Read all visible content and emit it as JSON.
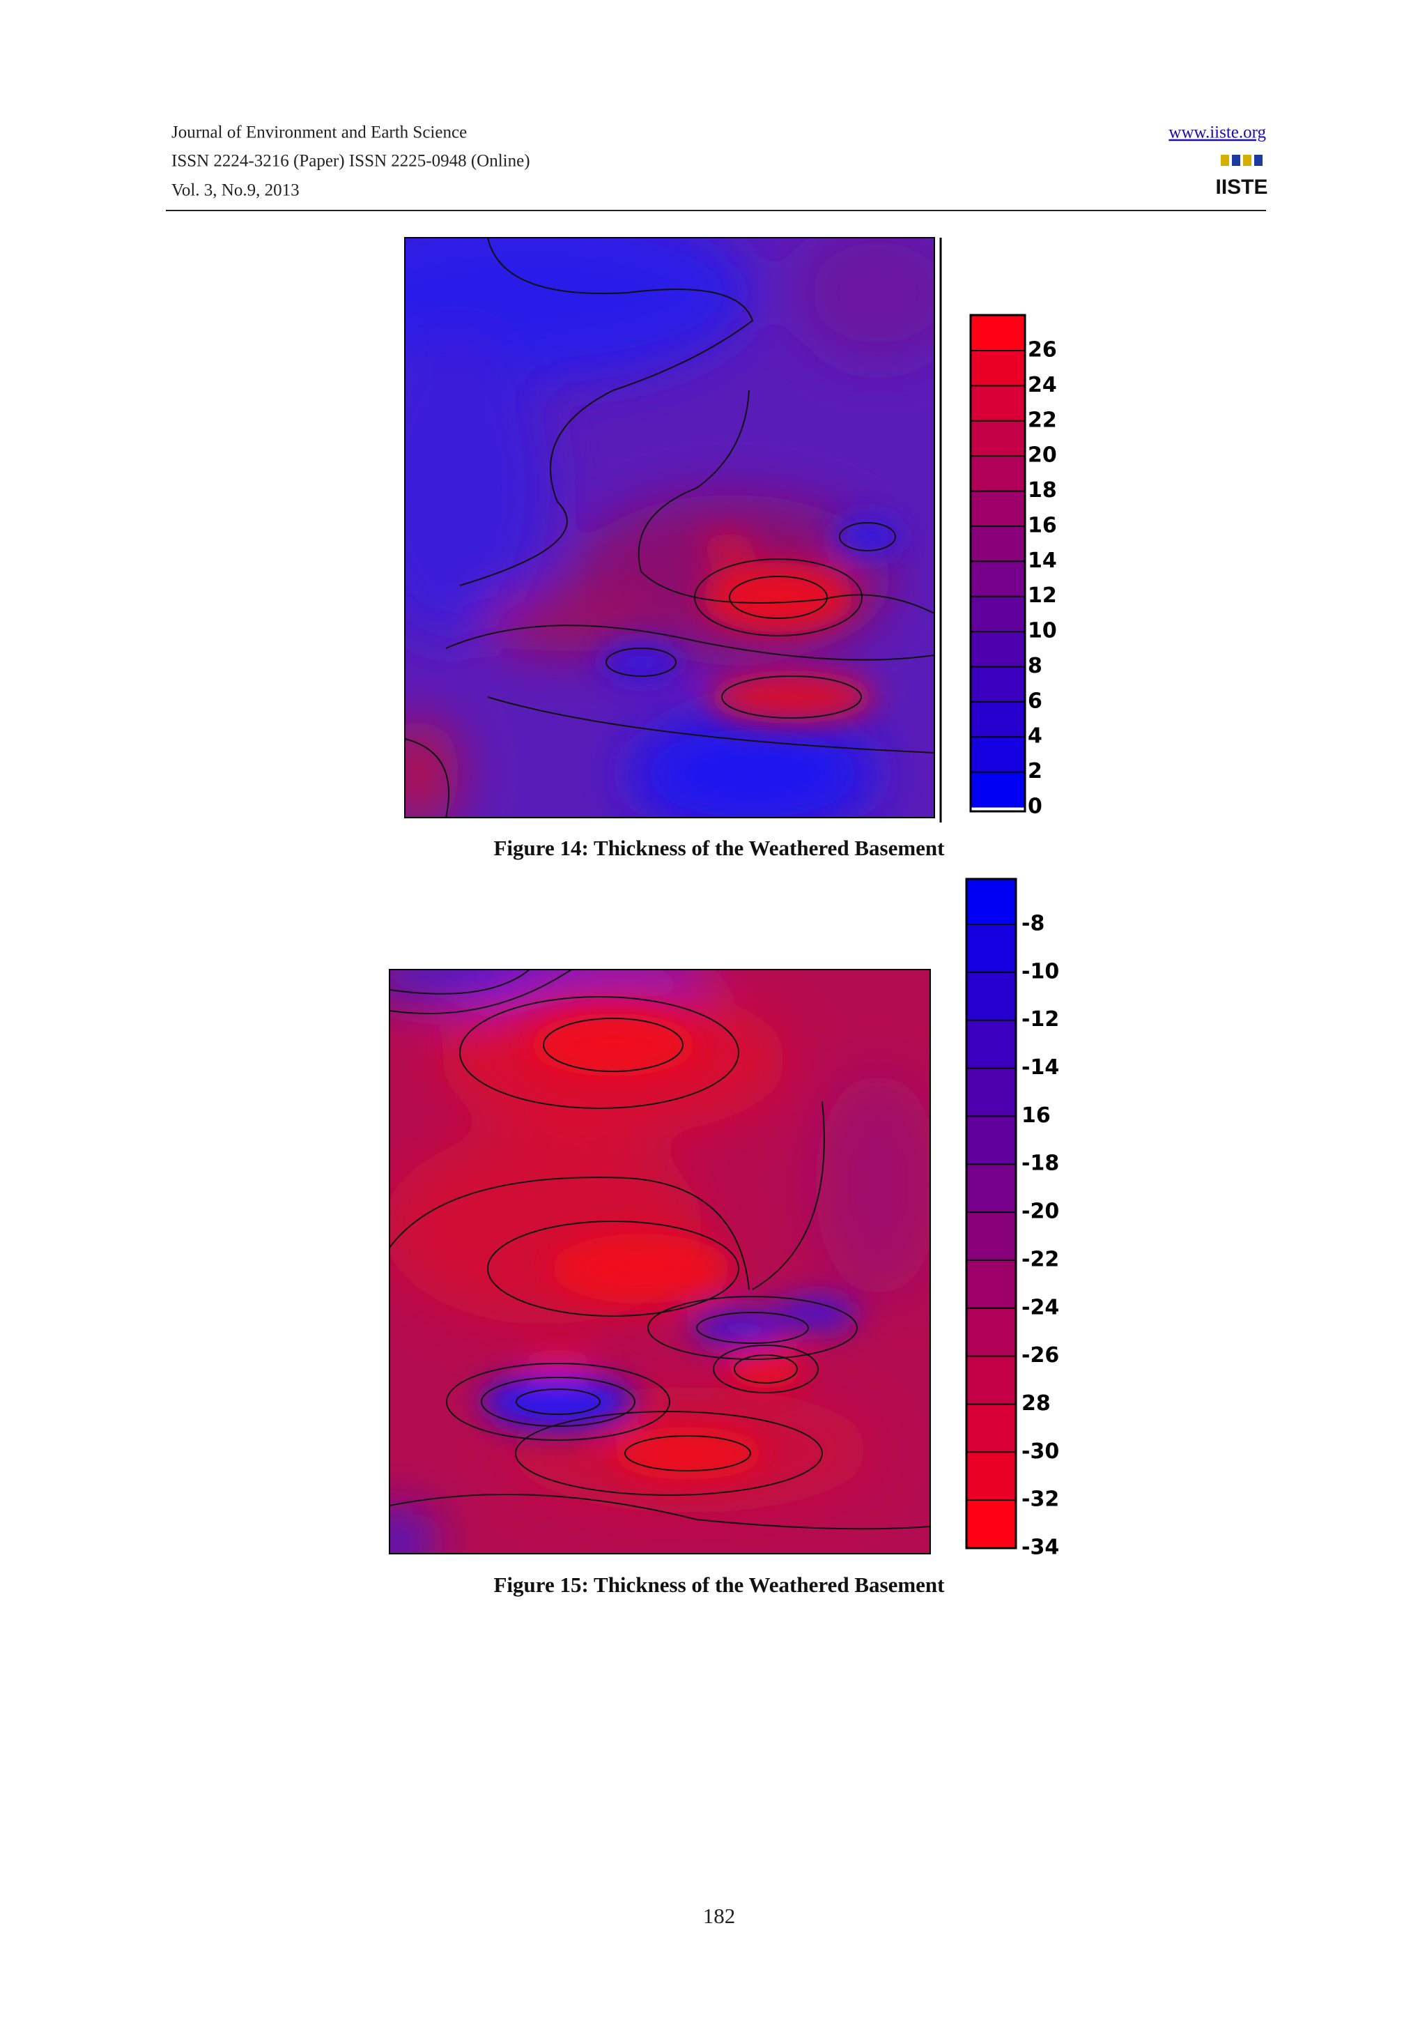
{
  "header": {
    "journal": "Journal of Environment and Earth Science",
    "issn": "ISSN 2224-3216 (Paper) ISSN 2225-0948 (Online)",
    "volume": "Vol. 3, No.9, 2013",
    "website": "www.iiste.org",
    "logo": "IISTE"
  },
  "figures": [
    {
      "caption": "Figure 14: Thickness of the Weathered Basement",
      "colorbar_labels": [
        "26",
        "24",
        "22",
        "20",
        "18",
        "16",
        "14",
        "12",
        "10",
        "8",
        "6",
        "4",
        "2",
        "0"
      ]
    },
    {
      "caption": "Figure 15: Thickness of the Weathered Basement",
      "colorbar_labels": [
        "-8",
        "-10",
        "-12",
        "-14",
        "16",
        "-18",
        "-20",
        "-22",
        "-24",
        "-26",
        "28",
        "-30",
        "-32",
        "-34"
      ]
    }
  ],
  "page_number": "182"
}
